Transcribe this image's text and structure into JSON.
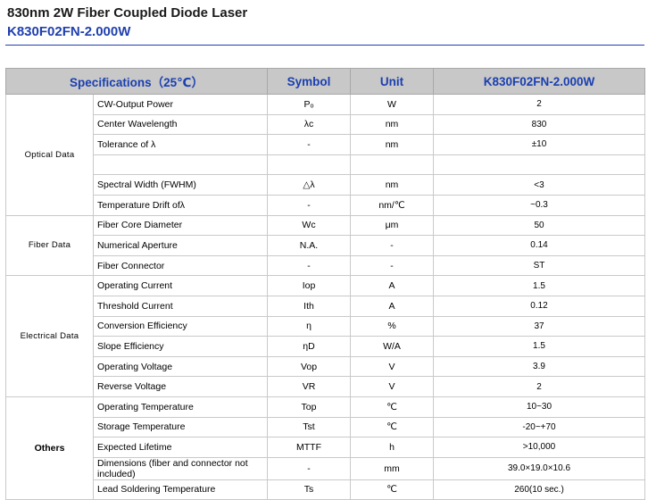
{
  "title": "830nm 2W Fiber Coupled Diode Laser",
  "model": "K830F02FN-2.000W",
  "table": {
    "headers": {
      "specifications": "Specifications（25℃）",
      "symbol": "Symbol",
      "unit": "Unit",
      "value": "K830F02FN-2.000W"
    },
    "groups": [
      {
        "name": "Optical Data",
        "rows": [
          {
            "parameter": "CW-Output Power",
            "symbol": "Pₒ",
            "unit": "W",
            "value": "2"
          },
          {
            "parameter": "Center Wavelength",
            "symbol": "λc",
            "unit": "nm",
            "value": "830"
          },
          {
            "parameter": "Tolerance of λ",
            "symbol": "-",
            "unit": "nm",
            "value": "±10"
          },
          {
            "parameter": "Spectral Width (FWHM)",
            "symbol": "△λ",
            "unit": "nm",
            "value": "<3"
          },
          {
            "parameter": "Temperature Drift ofλ",
            "symbol": "-",
            "unit": "nm/℃",
            "value": "~0.3"
          }
        ]
      },
      {
        "name": "Fiber Data",
        "rows": [
          {
            "parameter": "Fiber Core Diameter",
            "symbol": "Wc",
            "unit": "μm",
            "value": "50"
          },
          {
            "parameter": "Numerical Aperture",
            "symbol": "N.A.",
            "unit": "-",
            "value": "0.14"
          },
          {
            "parameter": "Fiber Connector",
            "symbol": "-",
            "unit": "-",
            "value": "ST"
          }
        ]
      },
      {
        "name": "Electrical Data",
        "rows": [
          {
            "parameter": "Operating Current",
            "symbol": "Iop",
            "unit": "A",
            "value": "1.5"
          },
          {
            "parameter": "Threshold Current",
            "symbol": "Ith",
            "unit": "A",
            "value": "0.12"
          },
          {
            "parameter": "Conversion Efficiency",
            "symbol": "η",
            "unit": "%",
            "value": "37"
          },
          {
            "parameter": "Slope Efficiency",
            "symbol": "ηD",
            "unit": "W/A",
            "value": "1.5"
          },
          {
            "parameter": "Operating Voltage",
            "symbol": "Vop",
            "unit": "V",
            "value": "3.9"
          },
          {
            "parameter": "Reverse Voltage",
            "symbol": "VR",
            "unit": "V",
            "value": "2"
          }
        ]
      },
      {
        "name": "Others",
        "rows": [
          {
            "parameter": "Operating Temperature",
            "symbol": "Top",
            "unit": "℃",
            "value": "10~30"
          },
          {
            "parameter": "Storage Temperature",
            "symbol": "Tst",
            "unit": "℃",
            "value": "-20~+70"
          },
          {
            "parameter": "Expected Lifetime",
            "symbol": "MTTF",
            "unit": "h",
            "value": ">10,000"
          },
          {
            "parameter": "Dimensions (fiber and connector not included)",
            "symbol": "-",
            "unit": "mm",
            "value": "39.0×19.0×10.6"
          },
          {
            "parameter": "Lead Soldering Temperature",
            "symbol": "Ts",
            "unit": "℃",
            "value": "260(10 sec.)"
          }
        ]
      }
    ]
  }
}
